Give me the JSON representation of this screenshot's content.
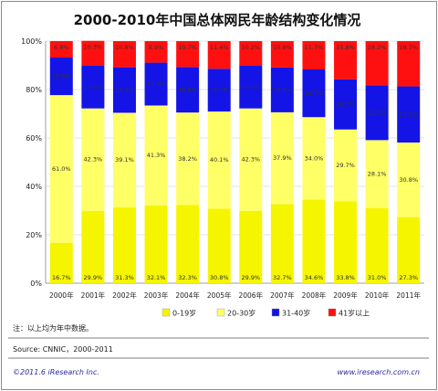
{
  "chart_data": {
    "type": "bar",
    "stacked": true,
    "title": "2000-2010年中国总体网民年龄结构变化情况",
    "categories": [
      "2000年",
      "2001年",
      "2002年",
      "2003年",
      "2004年",
      "2005年",
      "2006年",
      "2007年",
      "2008年",
      "2009年",
      "2010年",
      "2011年"
    ],
    "ylim": [
      0,
      100
    ],
    "yticks": [
      "0%",
      "20%",
      "40%",
      "60%",
      "80%",
      "100%"
    ],
    "series": [
      {
        "name": "0-19岁",
        "color": "#f5f500",
        "values": [
          16.7,
          29.9,
          31.3,
          32.1,
          32.3,
          30.8,
          29.9,
          32.7,
          34.6,
          33.8,
          31.0,
          27.3
        ]
      },
      {
        "name": "20-30岁",
        "color": "#ffff66",
        "values": [
          61.0,
          42.3,
          39.1,
          41.3,
          38.2,
          40.1,
          42.3,
          37.9,
          34.0,
          29.7,
          28.1,
          30.8
        ]
      },
      {
        "name": "31-40岁",
        "color": "#1414e6",
        "values": [
          15.5,
          17.6,
          18.8,
          17.7,
          18.8,
          17.7,
          17.6,
          18.5,
          19.7,
          20.7,
          22.7,
          23.2
        ]
      },
      {
        "name": "41岁以上",
        "color": "#ff1010",
        "values": [
          6.8,
          10.3,
          10.8,
          8.9,
          10.7,
          11.4,
          10.2,
          10.9,
          11.7,
          15.8,
          18.2,
          18.7
        ]
      }
    ],
    "labels": [
      [
        "16.7%",
        "29.9%",
        "31.3%",
        "32.1%",
        "32.3%",
        "30.8%",
        "29.9%",
        "32.7%",
        "34.6%",
        "33.8%",
        "31.0%",
        "27.3%"
      ],
      [
        "61.0%",
        "42.3%",
        "39.1%",
        "41.3%",
        "38.2%",
        "40.1%",
        "42.3%",
        "37.9%",
        "34.0%",
        "29.7%",
        "28.1%",
        "30.8%"
      ],
      [
        "15.5%",
        "17.6%",
        "18.8%",
        "17.7%",
        "18.8%",
        "17.7%",
        "17.6%",
        "18.5%",
        "19.7%",
        "20.7%",
        "22.7%",
        "23.2%"
      ],
      [
        "6.8%",
        "10.3%",
        "10.8%",
        "8.9%",
        "10.7%",
        "11.4%",
        "10.2%",
        "10.9%",
        "11.7%",
        "15.8%",
        "18.2%",
        "18.7%"
      ]
    ],
    "legend_position": "bottom"
  },
  "note": "注：以上均为年中数据。",
  "source": "Source: CNNIC，2000-2011",
  "copyright": "©2011.6 iResearch Inc.",
  "website": "www.iresearch.com.cn"
}
